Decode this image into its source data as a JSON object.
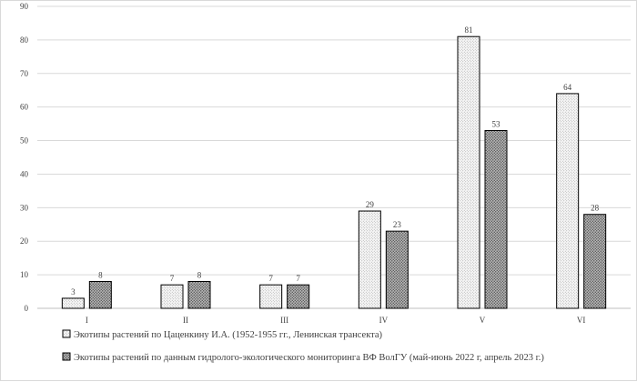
{
  "chart_data": {
    "type": "bar",
    "categories": [
      "I",
      "II",
      "III",
      "IV",
      "V",
      "VI"
    ],
    "series": [
      {
        "name": "Экотипы растений по Цаценкину И.А. (1952-1955 гг., Ленинская трансекта)",
        "values": [
          3,
          7,
          7,
          29,
          81,
          64
        ],
        "fill": "#f2f2f2",
        "pattern": "fine-dots"
      },
      {
        "name": "Экотипы растений по данным гидролого-экологического мониторинга ВФ ВолГУ (май-июнь 2022 г, апрель 2023 г.)",
        "values": [
          8,
          8,
          7,
          23,
          53,
          28
        ],
        "fill": "#8c8c8c",
        "pattern": "dense-dots"
      }
    ],
    "ylim": [
      0,
      90
    ],
    "yticks": [
      0,
      10,
      20,
      30,
      40,
      50,
      60,
      70,
      80,
      90
    ],
    "grid": true,
    "legend": "bottom-left",
    "data_labels": true,
    "title": "",
    "xlabel": "",
    "ylabel": ""
  }
}
